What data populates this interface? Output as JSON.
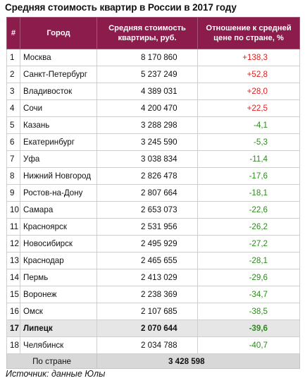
{
  "title": "Средняя стоимость квартир в России в 2017 году",
  "headers": {
    "num": "#",
    "city": "Город",
    "avg": "Средняя стоимость квартиры, руб.",
    "ratio": "Отношение к средней цене по стране, %"
  },
  "rows": [
    {
      "n": "1",
      "city": "Москва",
      "avg": "8 170 860",
      "ratio": "+138,3",
      "sign": "pos"
    },
    {
      "n": "2",
      "city": "Санкт-Петербург",
      "avg": "5 237 249",
      "ratio": "+52,8",
      "sign": "pos"
    },
    {
      "n": "3",
      "city": "Владивосток",
      "avg": "4 389 031",
      "ratio": "+28,0",
      "sign": "pos"
    },
    {
      "n": "4",
      "city": "Сочи",
      "avg": "4 200 470",
      "ratio": "+22,5",
      "sign": "pos"
    },
    {
      "n": "5",
      "city": "Казань",
      "avg": "3 288 298",
      "ratio": "-4,1",
      "sign": "neg"
    },
    {
      "n": "6",
      "city": "Екатеринбург",
      "avg": "3 245 590",
      "ratio": "-5,3",
      "sign": "neg"
    },
    {
      "n": "7",
      "city": "Уфа",
      "avg": "3 038 834",
      "ratio": "-11,4",
      "sign": "neg"
    },
    {
      "n": "8",
      "city": "Нижний Новгород",
      "avg": "2 826 478",
      "ratio": "-17,6",
      "sign": "neg"
    },
    {
      "n": "9",
      "city": "Ростов-на-Дону",
      "avg": "2 807 664",
      "ratio": "-18,1",
      "sign": "neg"
    },
    {
      "n": "10",
      "city": "Самара",
      "avg": "2 653 073",
      "ratio": "-22,6",
      "sign": "neg"
    },
    {
      "n": "11",
      "city": "Красноярск",
      "avg": "2 531 956",
      "ratio": "-26,2",
      "sign": "neg"
    },
    {
      "n": "12",
      "city": "Новосибирск",
      "avg": "2 495 929",
      "ratio": "-27,2",
      "sign": "neg"
    },
    {
      "n": "13",
      "city": "Краснодар",
      "avg": "2 465 655",
      "ratio": "-28,1",
      "sign": "neg"
    },
    {
      "n": "14",
      "city": "Пермь",
      "avg": "2 413 029",
      "ratio": "-29,6",
      "sign": "neg"
    },
    {
      "n": "15",
      "city": "Воронеж",
      "avg": "2 238 369",
      "ratio": "-34,7",
      "sign": "neg"
    },
    {
      "n": "16",
      "city": "Омск",
      "avg": "2 107 685",
      "ratio": "-38,5",
      "sign": "neg"
    },
    {
      "n": "17",
      "city": "Липецк",
      "avg": "2 070 644",
      "ratio": "-39,6",
      "sign": "neg",
      "highlight": true
    },
    {
      "n": "18",
      "city": "Челябинск",
      "avg": "2 034 788",
      "ratio": "-40,7",
      "sign": "neg"
    }
  ],
  "total": {
    "label": "По стране",
    "value": "3 428 598"
  },
  "source": "Источник: данные Юлы",
  "colors": {
    "header_bg": "#8c1c4c",
    "positive": "#e02020",
    "negative": "#2e8a1f",
    "highlight_bg": "#e6e6e6",
    "total_bg": "#d8d8d8"
  }
}
